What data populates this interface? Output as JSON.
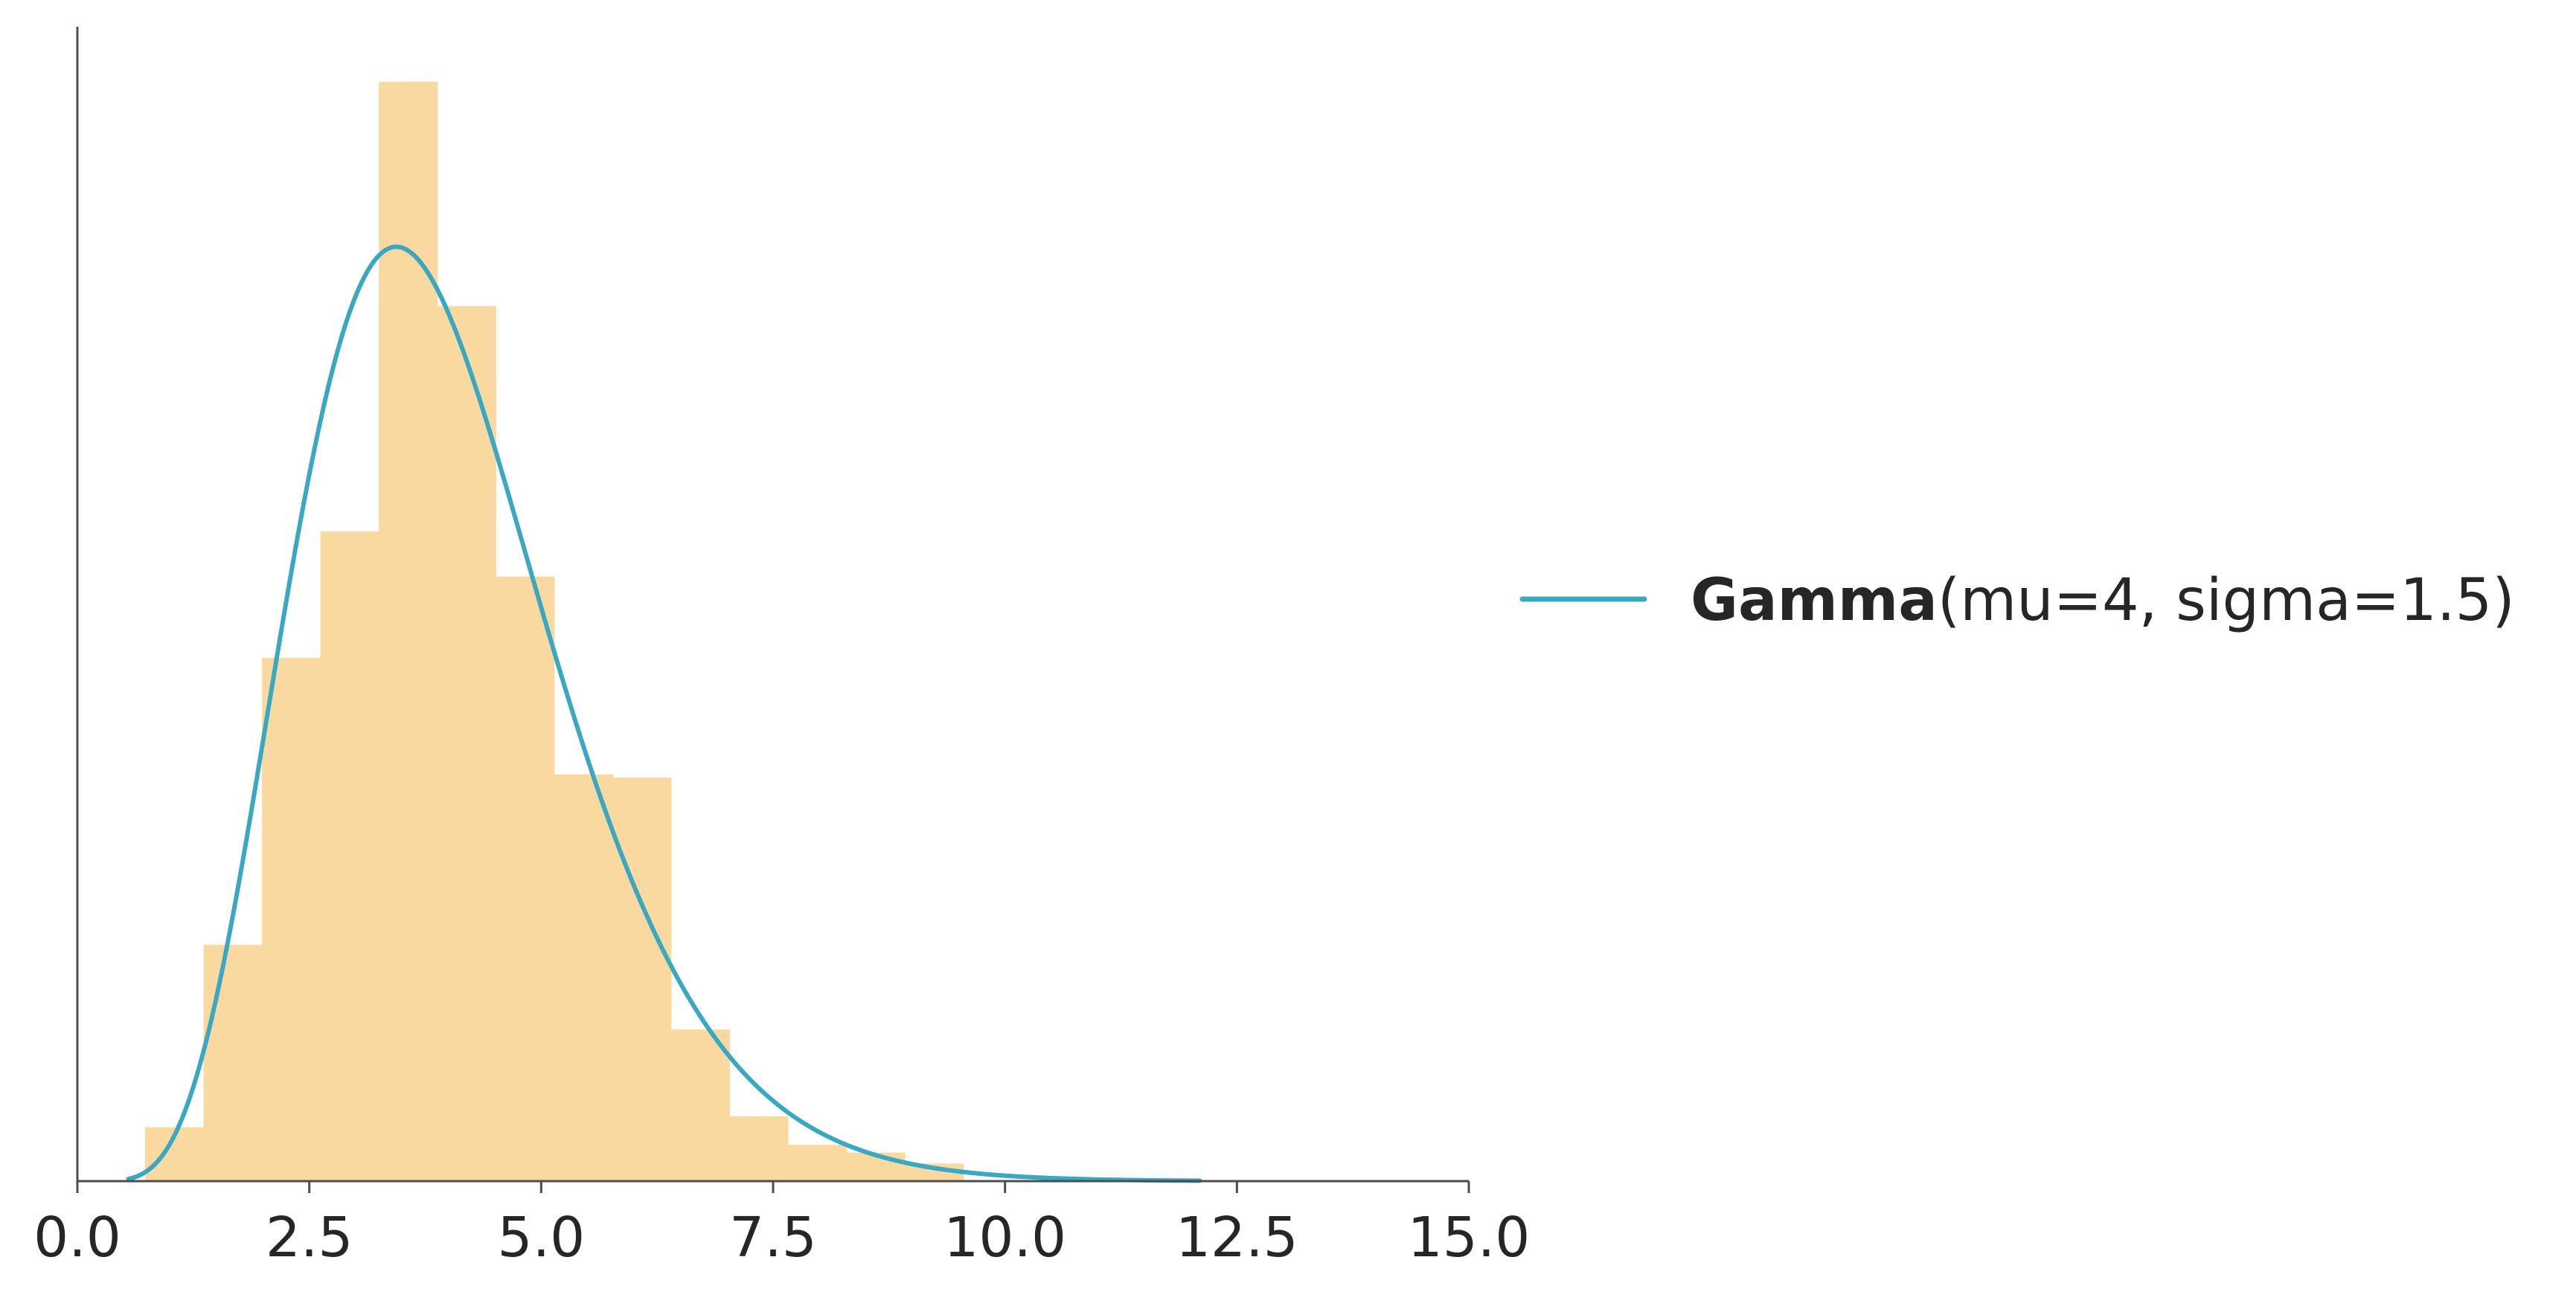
{
  "chart_data": {
    "type": "histogram",
    "xlim": [
      0.0,
      15.0
    ],
    "x_ticks": [
      "0.0",
      "2.5",
      "5.0",
      "7.5",
      "10.0",
      "12.5",
      "15.0"
    ],
    "x_tick_values": [
      0,
      2.5,
      5,
      7.5,
      10,
      12.5,
      15
    ],
    "y_axis_ticks_shown": false,
    "grid": false,
    "legend_position": "right",
    "bar_color": "#fad9a1",
    "line_color": "#3aa8c1",
    "histogram": {
      "bin_edges": [
        0.73,
        1.36,
        1.99,
        2.62,
        3.25,
        3.88,
        4.51,
        5.14,
        5.77,
        6.4,
        7.03,
        7.66,
        8.29,
        8.92,
        9.55
      ],
      "density": [
        0.049,
        0.215,
        0.476,
        0.591,
        1.0,
        0.796,
        0.55,
        0.37,
        0.367,
        0.138,
        0.059,
        0.033,
        0.026,
        0.016
      ]
    },
    "series": [
      {
        "legend_name": "Gamma",
        "legend_params": "(mu=4, sigma=1.5)",
        "distribution": "gamma",
        "mu": 4,
        "sigma": 1.5,
        "x_range": [
          0.55,
          12.1
        ],
        "peak_relative_to_tallest_bar": 0.85
      }
    ]
  }
}
